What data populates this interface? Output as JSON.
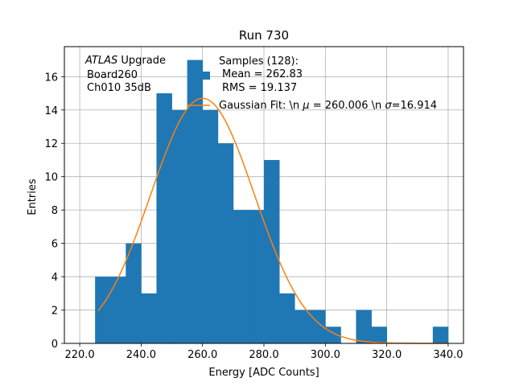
{
  "chart_data": {
    "type": "bar",
    "title": "Run 730",
    "xlabel": "Energy [ADC Counts]",
    "ylabel": "Entries",
    "xlim": [
      215,
      345
    ],
    "ylim": [
      0,
      17.8
    ],
    "grid": true,
    "xticks": [
      220,
      240,
      260,
      280,
      300,
      320,
      340
    ],
    "xtick_labels": [
      "220.0",
      "240.0",
      "260.0",
      "280.0",
      "300.0",
      "320.0",
      "340.0"
    ],
    "yticks": [
      0,
      2,
      4,
      6,
      8,
      10,
      12,
      14,
      16
    ],
    "ytick_labels": [
      "0",
      "2",
      "4",
      "6",
      "8",
      "10",
      "12",
      "14",
      "16"
    ],
    "bin_width": 5,
    "bins": [
      {
        "start": 225,
        "count": 4
      },
      {
        "start": 230,
        "count": 4
      },
      {
        "start": 235,
        "count": 6
      },
      {
        "start": 240,
        "count": 3
      },
      {
        "start": 245,
        "count": 15
      },
      {
        "start": 250,
        "count": 14
      },
      {
        "start": 255,
        "count": 17
      },
      {
        "start": 260,
        "count": 14
      },
      {
        "start": 265,
        "count": 12
      },
      {
        "start": 270,
        "count": 8
      },
      {
        "start": 275,
        "count": 8
      },
      {
        "start": 280,
        "count": 11
      },
      {
        "start": 285,
        "count": 3
      },
      {
        "start": 290,
        "count": 2
      },
      {
        "start": 295,
        "count": 2
      },
      {
        "start": 300,
        "count": 1
      },
      {
        "start": 310,
        "count": 2
      },
      {
        "start": 315,
        "count": 1
      },
      {
        "start": 335,
        "count": 1
      }
    ],
    "fit": {
      "type": "gaussian",
      "mu": 260.006,
      "sigma": 16.914,
      "amplitude": 14.7,
      "x_range": [
        226,
        340
      ]
    },
    "series_colors": {
      "histogram": "#1f77b4",
      "fit": "#ff7f0e"
    },
    "annotation_lines": [
      "ATLAS Upgrade",
      "Board260",
      "Ch010 35dB"
    ],
    "legend": {
      "placement": "upper center",
      "hist_lines": [
        "Samples (128):",
        "Mean = 262.83",
        "RMS = 19.137"
      ],
      "fit_label": "Gaussian Fit: \\n μ = 260.006 \\n σ=16.914"
    }
  }
}
